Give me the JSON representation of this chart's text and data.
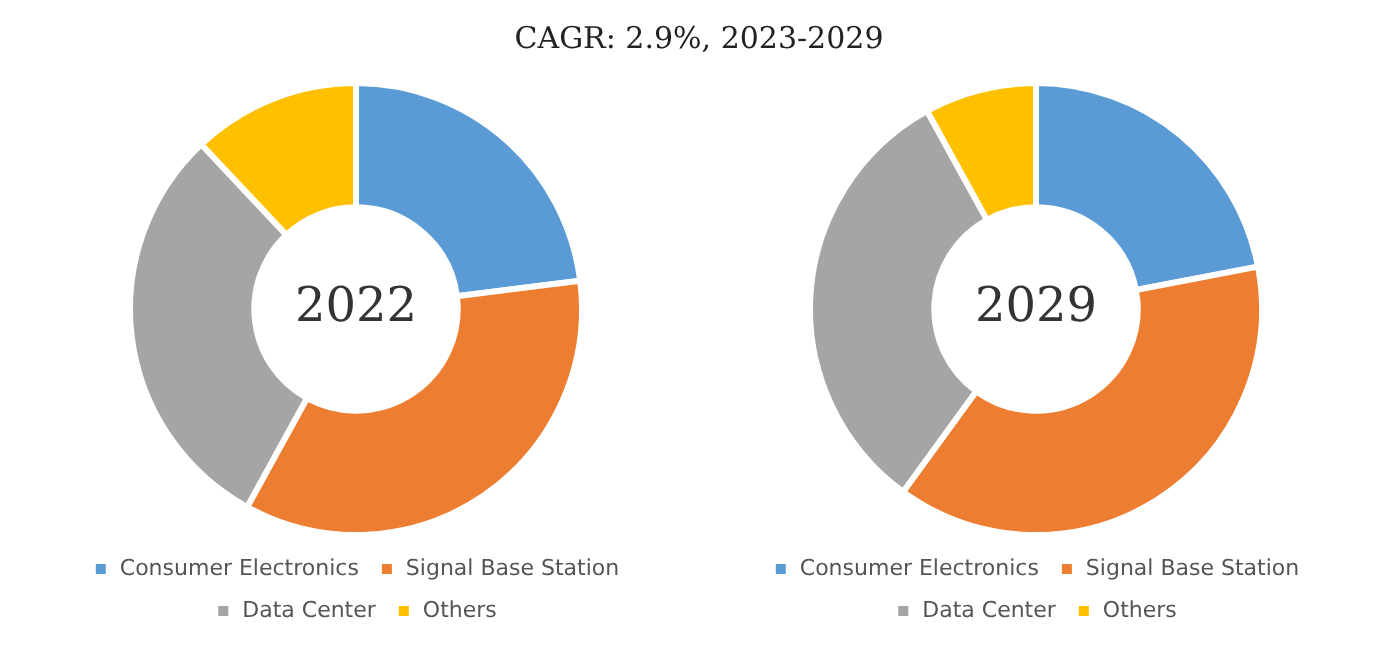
{
  "chart_data": [
    {
      "type": "donut",
      "title": "2022",
      "annotations": [
        "CAGR: 2.9%, 2023-2029"
      ],
      "categories": [
        "Consumer Electronics",
        "Signal Base Station",
        "Data Center",
        "Others"
      ],
      "values": [
        23,
        35,
        30,
        12
      ],
      "colors": [
        "#5b9bd5",
        "#ed7d31",
        "#a5a5a5",
        "#ffc000"
      ],
      "legend": "bottom"
    },
    {
      "type": "donut",
      "title": "2029",
      "categories": [
        "Consumer Electronics",
        "Signal Base Station",
        "Data Center",
        "Others"
      ],
      "values": [
        22,
        38,
        32,
        8
      ],
      "colors": [
        "#5b9bd5",
        "#ed7d31",
        "#a5a5a5",
        "#ffc000"
      ],
      "legend": "bottom"
    }
  ]
}
